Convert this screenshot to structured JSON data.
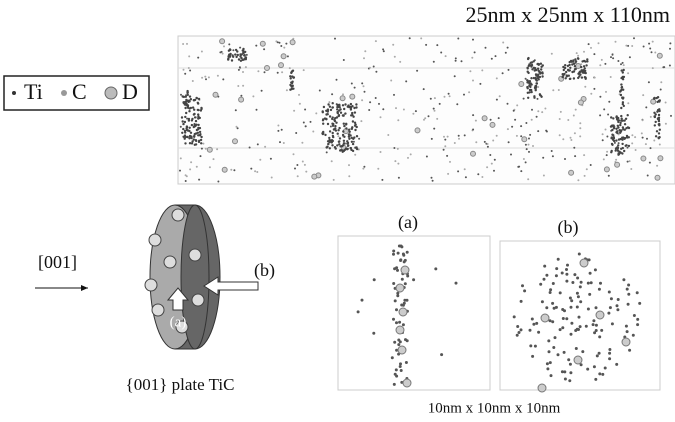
{
  "header": {
    "dimensions": "25nm x 25nm x 110nm"
  },
  "legend": {
    "items": [
      "Ti",
      "C",
      "D"
    ]
  },
  "schematic": {
    "direction": "[001]",
    "view_b": "(b)",
    "view_a": "(a)",
    "caption": "{001} plate TiC"
  },
  "panels": {
    "labels": [
      "(a)",
      "(b)"
    ],
    "caption": "10nm x 10nm x 10nm"
  }
}
